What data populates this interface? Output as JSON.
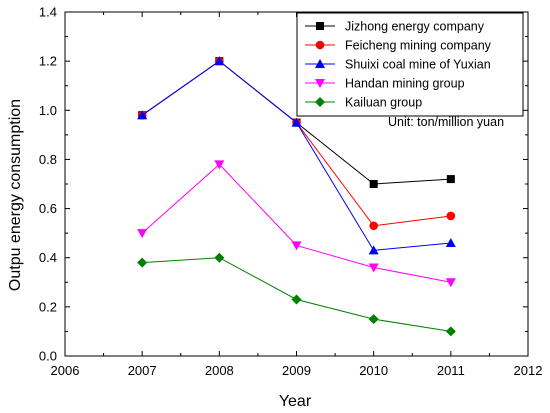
{
  "chart_data": {
    "type": "line",
    "xlabel": "Year",
    "ylabel": "Outpu energy consumption",
    "xlim": [
      2006,
      2012
    ],
    "ylim": [
      0.0,
      1.4
    ],
    "xticks": [
      "2006",
      "2007",
      "2008",
      "2009",
      "2010",
      "2011",
      "2012"
    ],
    "yticks": [
      "0.0",
      "0.2",
      "0.4",
      "0.6",
      "0.8",
      "1.0",
      "1.2",
      "1.4"
    ],
    "annotation": "Unit: ton/million yuan",
    "legend_position": "top-right",
    "grid": false,
    "x": [
      2007,
      2008,
      2009,
      2010,
      2011
    ],
    "series": [
      {
        "name": "Jizhong energy company",
        "color": "#000000",
        "marker": "square",
        "values": [
          0.98,
          1.2,
          0.95,
          0.7,
          0.72
        ]
      },
      {
        "name": "Feicheng mining company",
        "color": "#ff0000",
        "marker": "circle",
        "values": [
          0.98,
          1.2,
          0.95,
          0.53,
          0.57
        ]
      },
      {
        "name": "Shuixi coal mine of Yuxian",
        "color": "#0000ff",
        "marker": "triangle-up",
        "values": [
          0.98,
          1.2,
          0.95,
          0.43,
          0.46
        ]
      },
      {
        "name": "Handan mining group",
        "color": "#ff00ff",
        "marker": "triangle-down",
        "values": [
          0.5,
          0.78,
          0.45,
          0.36,
          0.3
        ]
      },
      {
        "name": "Kailuan group",
        "color": "#008000",
        "marker": "diamond",
        "values": [
          0.38,
          0.4,
          0.23,
          0.15,
          0.1
        ]
      }
    ]
  }
}
